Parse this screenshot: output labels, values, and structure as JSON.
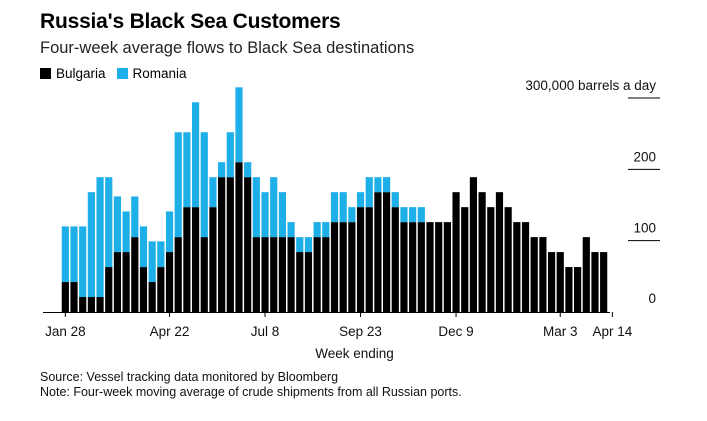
{
  "title": "Russia's Black Sea Customers",
  "subtitle": "Four-week average flows to Black Sea destinations",
  "colors": {
    "bulgaria": "#000000",
    "romania": "#1eaee8",
    "axis": "#000000"
  },
  "chart_data": {
    "type": "bar",
    "stacked": true,
    "xlabel": "Week ending",
    "y_unit_label": "300,000 barrels a day",
    "y_ticks": [
      {
        "value": 0,
        "label": "0"
      },
      {
        "value": 100,
        "label": "100"
      },
      {
        "value": 200,
        "label": "200"
      },
      {
        "value": 300,
        "label": "300,000 barrels a day"
      }
    ],
    "ylim": [
      0,
      300
    ],
    "grid": false,
    "legend_position": "top-left",
    "x_tick_labels": [
      {
        "index": 0,
        "label": "Jan 28"
      },
      {
        "index": 12,
        "label": "Apr 22"
      },
      {
        "index": 23,
        "label": "Jul 8"
      },
      {
        "index": 34,
        "label": "Sep 23"
      },
      {
        "index": 45,
        "label": "Dec 9"
      },
      {
        "index": 57,
        "label": "Mar 3"
      },
      {
        "index": 63,
        "label": "Apr 14"
      }
    ],
    "series": [
      {
        "name": "Bulgaria",
        "values": [
          42,
          42,
          21,
          21,
          21,
          63,
          84,
          84,
          105,
          63,
          42,
          63,
          84,
          105,
          147,
          147,
          105,
          147,
          189,
          189,
          210,
          189,
          105,
          105,
          105,
          105,
          105,
          84,
          84,
          105,
          105,
          126,
          126,
          126,
          147,
          147,
          168,
          168,
          147,
          126,
          126,
          126,
          126,
          126,
          126,
          168,
          147,
          189,
          168,
          147,
          168,
          147,
          126,
          126,
          105,
          105,
          84,
          84,
          63,
          63,
          105,
          84,
          84
        ]
      },
      {
        "name": "Romania",
        "values": [
          78,
          78,
          99,
          147,
          168,
          126,
          78,
          57,
          57,
          57,
          57,
          36,
          57,
          147,
          105,
          147,
          147,
          42,
          21,
          63,
          105,
          21,
          84,
          63,
          84,
          63,
          21,
          21,
          21,
          21,
          21,
          42,
          42,
          21,
          21,
          42,
          21,
          21,
          21,
          21,
          21,
          21,
          0,
          0,
          0,
          0,
          0,
          0,
          0,
          0,
          0,
          0,
          0,
          0,
          0,
          0,
          0,
          0,
          0,
          0,
          0,
          0,
          0
        ]
      }
    ]
  },
  "footer": {
    "source": "Source: Vessel tracking data monitored by Bloomberg",
    "note": "Note: Four-week moving average of crude shipments from all Russian ports."
  }
}
